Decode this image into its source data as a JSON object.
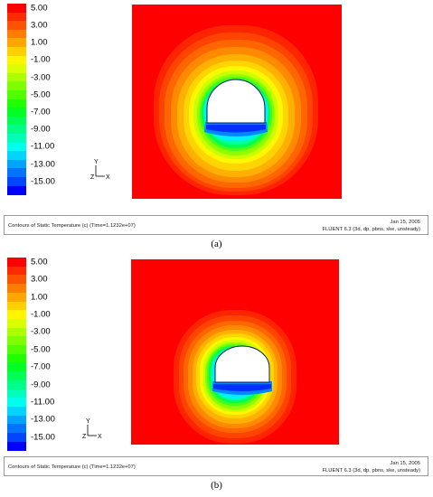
{
  "figure": {
    "legend": {
      "labels": [
        "5.00",
        "3.00",
        "1.00",
        "-1.00",
        "-3.00",
        "-5.00",
        "-7.00",
        "-9.00",
        "-11.00",
        "-13.00",
        "-15.00"
      ],
      "colors": [
        "#ff0000",
        "#ff2a00",
        "#ff5300",
        "#ff7d00",
        "#ffa600",
        "#ffd000",
        "#fff500",
        "#d9ff00",
        "#aaff00",
        "#7dff00",
        "#4fff00",
        "#1fff00",
        "#00ff24",
        "#00ff55",
        "#00ff88",
        "#00ffba",
        "#00ffec",
        "#00d4ff",
        "#00a4ff",
        "#0074ff",
        "#0045ff",
        "#0000ff"
      ]
    },
    "axis_labels": {
      "y": "Y",
      "x": "X",
      "z": "Z"
    },
    "panels": [
      {
        "id": "a",
        "caption": "(a)",
        "footer_left": "Contours of Static Temperature (c)  (Time=1.1232e+07)",
        "footer_date": "Jan 15, 2005",
        "footer_version": "FLUENT 6.3 (3d, dp, pbns, ske, unsteady)"
      },
      {
        "id": "b",
        "caption": "(b)",
        "footer_left": "Contours of Static Temperature (c)  (Time=1.1232e+07)",
        "footer_date": "Jan 15, 2005",
        "footer_version": "FLUENT 6.3 (3d, dp, pbns, ske, unsteady)"
      }
    ]
  }
}
